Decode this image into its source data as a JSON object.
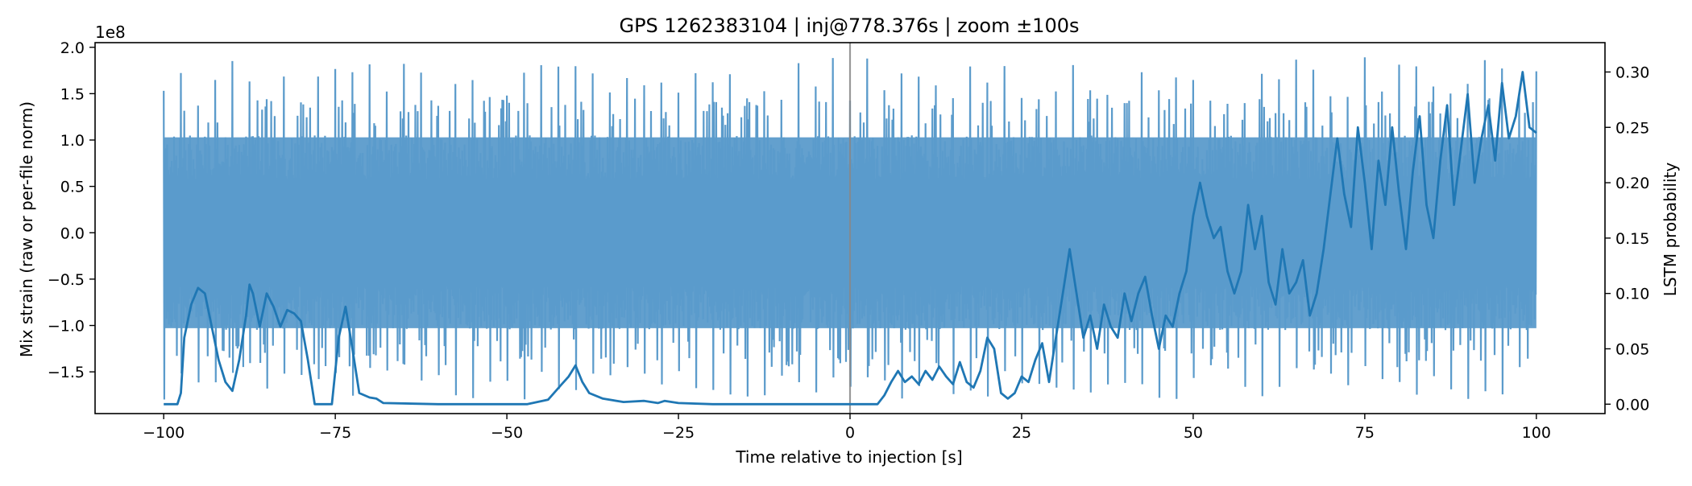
{
  "chart_data": {
    "type": "line",
    "title": "GPS 1262383104 | inj@778.376s | zoom ±100s",
    "xlabel": "Time relative to injection [s]",
    "ylabel_left": "Mix strain (raw or per-file norm)",
    "ylabel_right": "LSTM probability",
    "left_axis_offset_label": "1e8",
    "xlim": [
      -110,
      110
    ],
    "ylim_left": [
      -1.95,
      2.05
    ],
    "ylim_right": [
      -0.0085,
      0.3265
    ],
    "x_ticks": [
      {
        "value": -100,
        "label": "−100"
      },
      {
        "value": -75,
        "label": "−75"
      },
      {
        "value": -50,
        "label": "−50"
      },
      {
        "value": -25,
        "label": "−25"
      },
      {
        "value": 0,
        "label": "0"
      },
      {
        "value": 25,
        "label": "25"
      },
      {
        "value": 50,
        "label": "50"
      },
      {
        "value": 75,
        "label": "75"
      },
      {
        "value": 100,
        "label": "100"
      }
    ],
    "y_left_ticks": [
      {
        "value": 2.0,
        "label": "2.0"
      },
      {
        "value": 1.5,
        "label": "1.5"
      },
      {
        "value": 1.0,
        "label": "1.0"
      },
      {
        "value": 0.5,
        "label": "0.5"
      },
      {
        "value": 0.0,
        "label": "0.0"
      },
      {
        "value": -0.5,
        "label": "−0.5"
      },
      {
        "value": -1.0,
        "label": "−1.0"
      },
      {
        "value": -1.5,
        "label": "−1.5"
      }
    ],
    "y_right_ticks": [
      {
        "value": 0.3,
        "label": "0.30"
      },
      {
        "value": 0.25,
        "label": "0.25"
      },
      {
        "value": 0.2,
        "label": "0.20"
      },
      {
        "value": 0.15,
        "label": "0.15"
      },
      {
        "value": 0.1,
        "label": "0.10"
      },
      {
        "value": 0.05,
        "label": "0.05"
      },
      {
        "value": 0.0,
        "label": "0.00"
      }
    ],
    "injection_marker": {
      "x": 0,
      "color": "#888888"
    },
    "series": [
      {
        "name": "Mix strain",
        "axis": "left",
        "color": "#5b9bcb",
        "style": "dense oscillating waveform",
        "x_range": [
          -100,
          100
        ],
        "envelope_core": [
          -1.05,
          1.05
        ],
        "peak_max": 1.9,
        "trough_min": -1.8,
        "glitch_period_s": 2.5
      },
      {
        "name": "LSTM probability",
        "axis": "right",
        "color": "#1f77b4",
        "points": [
          [
            -100,
            0.0
          ],
          [
            -98,
            0.0
          ],
          [
            -97.5,
            0.01
          ],
          [
            -97,
            0.06
          ],
          [
            -96,
            0.09
          ],
          [
            -95,
            0.105
          ],
          [
            -94,
            0.1
          ],
          [
            -93,
            0.07
          ],
          [
            -92,
            0.04
          ],
          [
            -91,
            0.02
          ],
          [
            -90,
            0.012
          ],
          [
            -89,
            0.04
          ],
          [
            -88,
            0.08
          ],
          [
            -87.5,
            0.108
          ],
          [
            -87,
            0.1
          ],
          [
            -86,
            0.07
          ],
          [
            -85,
            0.1
          ],
          [
            -84,
            0.088
          ],
          [
            -83,
            0.07
          ],
          [
            -82,
            0.085
          ],
          [
            -81,
            0.082
          ],
          [
            -80,
            0.075
          ],
          [
            -79,
            0.04
          ],
          [
            -78,
            0.0
          ],
          [
            -75.5,
            0.0
          ],
          [
            -74.5,
            0.06
          ],
          [
            -73.5,
            0.088
          ],
          [
            -72.5,
            0.05
          ],
          [
            -71.5,
            0.01
          ],
          [
            -70,
            0.006
          ],
          [
            -69,
            0.005
          ],
          [
            -68,
            0.001
          ],
          [
            -60,
            0.0
          ],
          [
            -47,
            0.0
          ],
          [
            -44,
            0.004
          ],
          [
            -42,
            0.018
          ],
          [
            -41,
            0.025
          ],
          [
            -40,
            0.035
          ],
          [
            -39,
            0.02
          ],
          [
            -38,
            0.01
          ],
          [
            -36,
            0.005
          ],
          [
            -33,
            0.002
          ],
          [
            -30,
            0.003
          ],
          [
            -28,
            0.001
          ],
          [
            -27,
            0.003
          ],
          [
            -25,
            0.001
          ],
          [
            -20,
            0.0
          ],
          [
            0,
            0.0
          ],
          [
            4,
            0.0
          ],
          [
            5,
            0.008
          ],
          [
            6,
            0.02
          ],
          [
            7,
            0.03
          ],
          [
            8,
            0.02
          ],
          [
            9,
            0.025
          ],
          [
            10,
            0.018
          ],
          [
            11,
            0.03
          ],
          [
            12,
            0.022
          ],
          [
            13,
            0.034
          ],
          [
            14,
            0.025
          ],
          [
            15,
            0.018
          ],
          [
            16,
            0.038
          ],
          [
            17,
            0.02
          ],
          [
            18,
            0.015
          ],
          [
            19,
            0.03
          ],
          [
            20,
            0.06
          ],
          [
            21,
            0.05
          ],
          [
            22,
            0.01
          ],
          [
            23,
            0.005
          ],
          [
            24,
            0.01
          ],
          [
            25,
            0.025
          ],
          [
            26,
            0.02
          ],
          [
            27,
            0.04
          ],
          [
            28,
            0.055
          ],
          [
            29,
            0.02
          ],
          [
            30,
            0.06
          ],
          [
            31,
            0.1
          ],
          [
            32,
            0.14
          ],
          [
            33,
            0.1
          ],
          [
            34,
            0.06
          ],
          [
            35,
            0.08
          ],
          [
            36,
            0.05
          ],
          [
            37,
            0.09
          ],
          [
            38,
            0.07
          ],
          [
            39,
            0.06
          ],
          [
            40,
            0.1
          ],
          [
            41,
            0.075
          ],
          [
            42,
            0.1
          ],
          [
            43,
            0.115
          ],
          [
            44,
            0.08
          ],
          [
            45,
            0.05
          ],
          [
            46,
            0.08
          ],
          [
            47,
            0.07
          ],
          [
            48,
            0.1
          ],
          [
            49,
            0.12
          ],
          [
            50,
            0.17
          ],
          [
            51,
            0.2
          ],
          [
            52,
            0.17
          ],
          [
            53,
            0.15
          ],
          [
            54,
            0.16
          ],
          [
            55,
            0.12
          ],
          [
            56,
            0.1
          ],
          [
            57,
            0.12
          ],
          [
            58,
            0.18
          ],
          [
            59,
            0.14
          ],
          [
            60,
            0.17
          ],
          [
            61,
            0.11
          ],
          [
            62,
            0.09
          ],
          [
            63,
            0.14
          ],
          [
            64,
            0.1
          ],
          [
            65,
            0.11
          ],
          [
            66,
            0.13
          ],
          [
            67,
            0.08
          ],
          [
            68,
            0.1
          ],
          [
            69,
            0.14
          ],
          [
            70,
            0.19
          ],
          [
            71,
            0.24
          ],
          [
            72,
            0.19
          ],
          [
            73,
            0.16
          ],
          [
            74,
            0.25
          ],
          [
            75,
            0.2
          ],
          [
            76,
            0.14
          ],
          [
            77,
            0.22
          ],
          [
            78,
            0.18
          ],
          [
            79,
            0.25
          ],
          [
            80,
            0.19
          ],
          [
            81,
            0.14
          ],
          [
            82,
            0.21
          ],
          [
            83,
            0.26
          ],
          [
            84,
            0.18
          ],
          [
            85,
            0.15
          ],
          [
            86,
            0.22
          ],
          [
            87,
            0.27
          ],
          [
            88,
            0.18
          ],
          [
            89,
            0.23
          ],
          [
            90,
            0.28
          ],
          [
            91,
            0.2
          ],
          [
            92,
            0.24
          ],
          [
            93,
            0.27
          ],
          [
            94,
            0.22
          ],
          [
            95,
            0.29
          ],
          [
            96,
            0.24
          ],
          [
            97,
            0.26
          ],
          [
            98,
            0.3
          ],
          [
            99,
            0.25
          ],
          [
            100,
            0.245
          ]
        ]
      }
    ]
  }
}
